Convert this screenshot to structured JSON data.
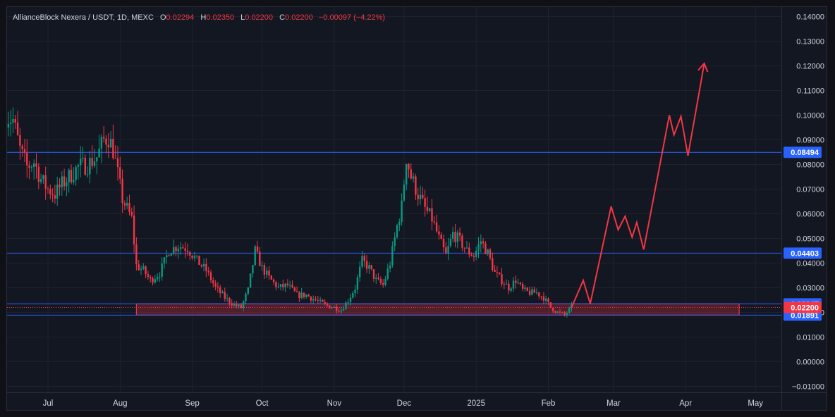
{
  "header": {
    "symbol": "AllianceBlock Nexera / USDT, 1D, MEXC",
    "open_label": "O",
    "open": "0.02294",
    "high_label": "H",
    "high": "0.02350",
    "low_label": "L",
    "low": "0.02200",
    "close_label": "C",
    "close": "0.02200",
    "change": "−0.00097 (−4.22%)"
  },
  "colors": {
    "up": "#089981",
    "down": "#f23645",
    "level": "#2962ff",
    "zone": "#f23645",
    "projection": "#f23645",
    "background": "#131722",
    "grid": "#1e222d",
    "text": "#d1d4dc"
  },
  "chart_data": {
    "type": "candlestick",
    "symbol": "AllianceBlock Nexera / USDT",
    "interval": "1D",
    "exchange": "MEXC",
    "ylim": [
      -0.01,
      0.14
    ],
    "y_ticks": [
      "0.14000",
      "0.13000",
      "0.12000",
      "0.11000",
      "0.10000",
      "0.09000",
      "0.08000",
      "0.07000",
      "0.06000",
      "0.05000",
      "0.04000",
      "0.03000",
      "0.02000",
      "0.01000",
      "0.00000",
      "−0.01000"
    ],
    "y_tick_values": [
      0.14,
      0.13,
      0.12,
      0.11,
      0.1,
      0.09,
      0.08,
      0.07,
      0.06,
      0.05,
      0.04,
      0.03,
      0.02,
      0.01,
      0.0,
      -0.01
    ],
    "x_ticks": [
      {
        "label": "Jul",
        "date": "2024-07-01"
      },
      {
        "label": "Aug",
        "date": "2024-08-01"
      },
      {
        "label": "Sep",
        "date": "2024-09-01"
      },
      {
        "label": "Oct",
        "date": "2024-10-01"
      },
      {
        "label": "Nov",
        "date": "2024-11-01"
      },
      {
        "label": "Dec",
        "date": "2024-12-01"
      },
      {
        "label": "2025",
        "date": "2025-01-01"
      },
      {
        "label": "Feb",
        "date": "2025-02-01"
      },
      {
        "label": "Mar",
        "date": "2025-03-01"
      },
      {
        "label": "Apr",
        "date": "2025-04-01"
      },
      {
        "label": "May",
        "date": "2025-05-01"
      }
    ],
    "price_path": [
      [
        "2024-06-13",
        0.1
      ],
      [
        "2024-06-16",
        0.098
      ],
      [
        "2024-06-19",
        0.086
      ],
      [
        "2024-06-22",
        0.079
      ],
      [
        "2024-06-25",
        0.081
      ],
      [
        "2024-06-28",
        0.074
      ],
      [
        "2024-07-01",
        0.07
      ],
      [
        "2024-07-04",
        0.068
      ],
      [
        "2024-07-07",
        0.072
      ],
      [
        "2024-07-10",
        0.075
      ],
      [
        "2024-07-14",
        0.079
      ],
      [
        "2024-07-18",
        0.08
      ],
      [
        "2024-07-22",
        0.083
      ],
      [
        "2024-07-25",
        0.09
      ],
      [
        "2024-07-27",
        0.091
      ],
      [
        "2024-07-29",
        0.086
      ],
      [
        "2024-07-31",
        0.076
      ],
      [
        "2024-08-02",
        0.066
      ],
      [
        "2024-08-04",
        0.062
      ],
      [
        "2024-08-06",
        0.058
      ],
      [
        "2024-08-08",
        0.039
      ],
      [
        "2024-08-11",
        0.037
      ],
      [
        "2024-08-14",
        0.033
      ],
      [
        "2024-08-18",
        0.036
      ],
      [
        "2024-08-22",
        0.045
      ],
      [
        "2024-08-26",
        0.047
      ],
      [
        "2024-08-30",
        0.046
      ],
      [
        "2024-09-03",
        0.041
      ],
      [
        "2024-09-07",
        0.037
      ],
      [
        "2024-09-11",
        0.03
      ],
      [
        "2024-09-15",
        0.026
      ],
      [
        "2024-09-19",
        0.023
      ],
      [
        "2024-09-22",
        0.022
      ],
      [
        "2024-09-25",
        0.029
      ],
      [
        "2024-09-28",
        0.045
      ],
      [
        "2024-10-01",
        0.038
      ],
      [
        "2024-10-04",
        0.034
      ],
      [
        "2024-10-08",
        0.03
      ],
      [
        "2024-10-12",
        0.031
      ],
      [
        "2024-10-16",
        0.027
      ],
      [
        "2024-10-20",
        0.027
      ],
      [
        "2024-10-24",
        0.025
      ],
      [
        "2024-10-28",
        0.023
      ],
      [
        "2024-11-01",
        0.022
      ],
      [
        "2024-11-04",
        0.021
      ],
      [
        "2024-11-07",
        0.025
      ],
      [
        "2024-11-10",
        0.03
      ],
      [
        "2024-11-13",
        0.041
      ],
      [
        "2024-11-16",
        0.038
      ],
      [
        "2024-11-19",
        0.033
      ],
      [
        "2024-11-22",
        0.031
      ],
      [
        "2024-11-25",
        0.04
      ],
      [
        "2024-11-28",
        0.055
      ],
      [
        "2024-11-30",
        0.063
      ],
      [
        "2024-12-02",
        0.083
      ],
      [
        "2024-12-04",
        0.075
      ],
      [
        "2024-12-07",
        0.068
      ],
      [
        "2024-12-10",
        0.062
      ],
      [
        "2024-12-13",
        0.058
      ],
      [
        "2024-12-16",
        0.05
      ],
      [
        "2024-12-19",
        0.043
      ],
      [
        "2024-12-22",
        0.052
      ],
      [
        "2024-12-25",
        0.049
      ],
      [
        "2024-12-28",
        0.045
      ],
      [
        "2024-12-31",
        0.043
      ],
      [
        "2025-01-03",
        0.049
      ],
      [
        "2025-01-06",
        0.044
      ],
      [
        "2025-01-09",
        0.036
      ],
      [
        "2025-01-12",
        0.033
      ],
      [
        "2025-01-15",
        0.03
      ],
      [
        "2025-01-18",
        0.033
      ],
      [
        "2025-01-21",
        0.029
      ],
      [
        "2025-01-24",
        0.028
      ],
      [
        "2025-01-27",
        0.028
      ],
      [
        "2025-01-30",
        0.026
      ],
      [
        "2025-02-02",
        0.022
      ],
      [
        "2025-02-05",
        0.02
      ],
      [
        "2025-02-08",
        0.019
      ],
      [
        "2025-02-11",
        0.022
      ]
    ],
    "horizontal_levels": [
      {
        "value": 0.08494,
        "label": "0.08494"
      },
      {
        "value": 0.04403,
        "label": "0.04403"
      },
      {
        "value": 0.02347,
        "label": "0.02347"
      },
      {
        "value": 0.01891,
        "label": "0.01891"
      }
    ],
    "last_price": {
      "value": 0.022,
      "label": "0.02200"
    },
    "support_zone": {
      "from": "2024-08-08",
      "to": "2025-04-24",
      "low": 0.01891,
      "high": 0.02347
    },
    "projection_path": [
      [
        "2025-02-11",
        0.022
      ],
      [
        "2025-02-16",
        0.033
      ],
      [
        "2025-02-19",
        0.0235
      ],
      [
        "2025-02-28",
        0.063
      ],
      [
        "2025-03-03",
        0.0535
      ],
      [
        "2025-03-06",
        0.059
      ],
      [
        "2025-03-09",
        0.0505
      ],
      [
        "2025-03-11",
        0.0565
      ],
      [
        "2025-03-14",
        0.0455
      ],
      [
        "2025-03-25",
        0.1
      ],
      [
        "2025-03-27",
        0.092
      ],
      [
        "2025-03-30",
        0.0995
      ],
      [
        "2025-04-02",
        0.0835
      ],
      [
        "2025-04-09",
        0.121
      ]
    ]
  }
}
